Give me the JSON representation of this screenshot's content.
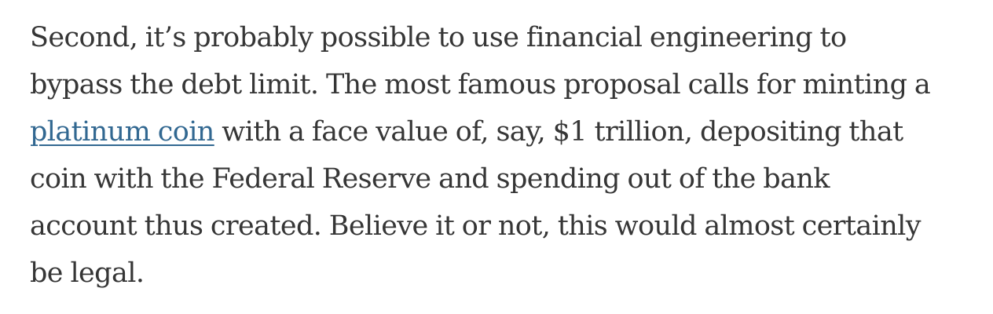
{
  "article": {
    "paragraph": {
      "lines": [
        "Second, it’s probably possible to use financial engineering to",
        "bypass the debt limit. The most famous proposal calls for minting a",
        " with a face value of, say, $1 trillion, depositing that",
        "coin with the Federal Reserve and spending out of the bank",
        "account thus created. Believe it or not, this would almost certainly",
        "be legal."
      ],
      "link_text": "platinum coin"
    },
    "colors": {
      "text": "#363636",
      "link": "#326891",
      "background": "#ffffff"
    }
  }
}
